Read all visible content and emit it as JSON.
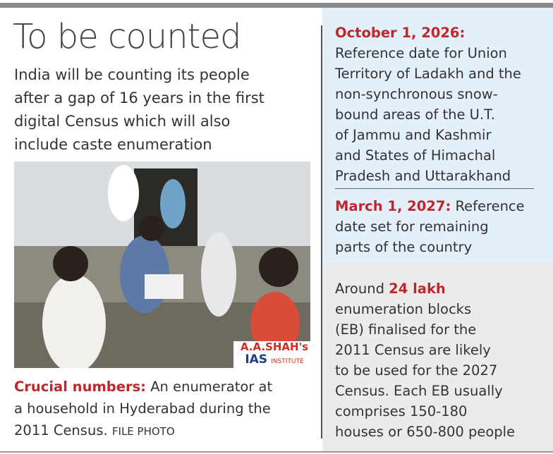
{
  "header": {
    "title": "To be counted",
    "subtitle": [
      "India will be counting its people",
      "after a gap of 16 years in the first",
      "digital Census which will also",
      "include caste enumeration"
    ]
  },
  "photo": {
    "watermark": {
      "name": "A.A.SHAH's",
      "tag": "IAS",
      "institute": "INSTITUTE"
    }
  },
  "caption": {
    "label": "Crucial numbers:",
    "lines": [
      "An enumerator at",
      "a household in Hyderabad during the",
      "2011 Census."
    ],
    "credit": "FILE PHOTO"
  },
  "dates": [
    {
      "date": "October 1, 2026:",
      "lines": [
        "Reference date for Union",
        "Territory of Ladakh and the",
        "non-synchronous snow-",
        "bound areas of the U.T.",
        "of Jammu and Kashmir",
        "and States of Himachal",
        "Pradesh and Uttarakhand"
      ]
    },
    {
      "date": "March 1, 2027:",
      "lines": [
        "Reference",
        "date set for remaining",
        "parts of the country"
      ]
    }
  ],
  "fact": {
    "lead": "Around",
    "highlight": "24 lakh",
    "lines": [
      "enumeration blocks",
      "(EB) finalised for the",
      "2011 Census are likely",
      "to be used for the 2027",
      "Census. Each EB usually",
      "comprises 150-180",
      "houses or 650-800 people"
    ]
  }
}
